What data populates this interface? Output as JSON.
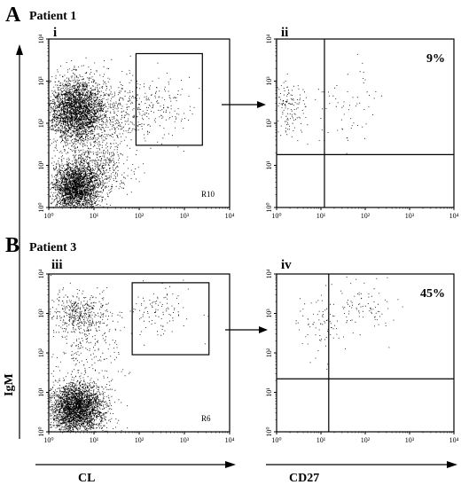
{
  "figure": {
    "panel_labels": [
      "A",
      "B"
    ],
    "patient_labels": [
      "Patient 1",
      "Patient 3"
    ],
    "y_axis_label": "IgM",
    "x_axis_labels": [
      "CL",
      "CD27"
    ]
  },
  "chart_data": [
    {
      "type": "scatter",
      "id": "i",
      "subplot_label": "i",
      "xscale": "log",
      "yscale": "log",
      "xlim": [
        1,
        10000
      ],
      "ylim": [
        1,
        10000
      ],
      "x_ticks": [
        1,
        10,
        100,
        1000,
        10000
      ],
      "y_ticks": [
        1,
        10,
        100,
        1000,
        10000
      ],
      "gate_label": "R10",
      "gate": {
        "x": [
          85,
          2500
        ],
        "y": [
          30,
          4500
        ]
      },
      "populations": [
        {
          "center": [
            4,
            200
          ],
          "spread": [
            0.32,
            0.38
          ],
          "count": 3000
        },
        {
          "center": [
            4,
            3
          ],
          "spread": [
            0.25,
            0.3
          ],
          "count": 2600
        },
        {
          "center": [
            12,
            9
          ],
          "spread": [
            0.35,
            0.35
          ],
          "count": 500
        },
        {
          "center": [
            30,
            200
          ],
          "spread": [
            0.45,
            0.4
          ],
          "count": 350
        },
        {
          "center": [
            300,
            200
          ],
          "spread": [
            0.4,
            0.38
          ],
          "count": 140
        }
      ]
    },
    {
      "type": "scatter",
      "id": "ii",
      "subplot_label": "ii",
      "xscale": "log",
      "yscale": "log",
      "xlim": [
        1,
        10000
      ],
      "ylim": [
        1,
        10000
      ],
      "x_ticks": [
        1,
        10,
        100,
        1000,
        10000
      ],
      "y_ticks": [
        1,
        10,
        100,
        1000,
        10000
      ],
      "quadrant_divider": {
        "x": 12,
        "y": 18
      },
      "percentage_label": "9%",
      "populations": [
        {
          "center": [
            1.6,
            250
          ],
          "spread": [
            0.22,
            0.32
          ],
          "count": 160
        },
        {
          "center": [
            30,
            300
          ],
          "spread": [
            0.55,
            0.45
          ],
          "count": 70
        }
      ]
    },
    {
      "type": "scatter",
      "id": "iii",
      "subplot_label": "iii",
      "xscale": "log",
      "yscale": "log",
      "xlim": [
        1,
        10000
      ],
      "ylim": [
        1,
        10000
      ],
      "x_ticks": [
        1,
        10,
        100,
        1000,
        10000
      ],
      "y_ticks": [
        1,
        10,
        100,
        1000,
        10000
      ],
      "gate_label": "R6",
      "gate": {
        "x": [
          70,
          3500
        ],
        "y": [
          90,
          6000
        ]
      },
      "populations": [
        {
          "center": [
            4,
            4
          ],
          "spread": [
            0.3,
            0.32
          ],
          "count": 3000
        },
        {
          "center": [
            5,
            1000
          ],
          "spread": [
            0.32,
            0.28
          ],
          "count": 450
        },
        {
          "center": [
            8,
            100
          ],
          "spread": [
            0.4,
            0.45
          ],
          "count": 180
        },
        {
          "center": [
            250,
            1000
          ],
          "spread": [
            0.4,
            0.35
          ],
          "count": 110
        }
      ]
    },
    {
      "type": "scatter",
      "id": "iv",
      "subplot_label": "iv",
      "xscale": "log",
      "yscale": "log",
      "xlim": [
        1,
        10000
      ],
      "ylim": [
        1,
        10000
      ],
      "x_ticks": [
        1,
        10,
        100,
        1000,
        10000
      ],
      "y_ticks": [
        1,
        10,
        100,
        1000,
        10000
      ],
      "quadrant_divider": {
        "x": 15,
        "y": 22
      },
      "percentage_label": "45%",
      "populations": [
        {
          "center": [
            9,
            500
          ],
          "spread": [
            0.28,
            0.35
          ],
          "count": 80
        },
        {
          "center": [
            80,
            1500
          ],
          "spread": [
            0.35,
            0.32
          ],
          "count": 90
        }
      ]
    }
  ]
}
